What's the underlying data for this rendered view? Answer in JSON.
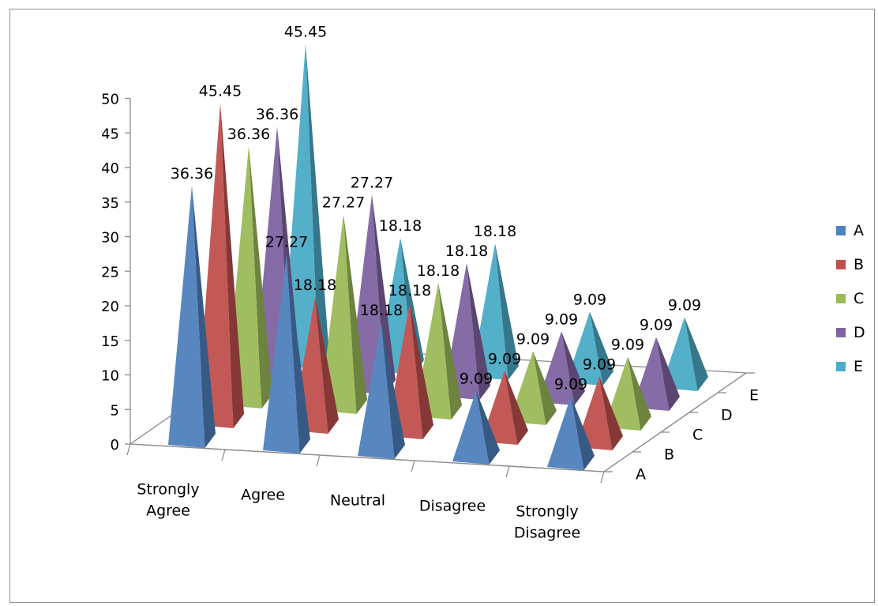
{
  "chart_data": {
    "type": "bar",
    "shape": "3d-pyramid",
    "categories": [
      "Strongly Agree",
      "Agree",
      "Neutral",
      "Disagree",
      "Strongly Disagree"
    ],
    "category_lines": [
      [
        "Strongly",
        "Agree"
      ],
      [
        "Agree"
      ],
      [
        "Neutral"
      ],
      [
        "Disagree"
      ],
      [
        "Strongly",
        "Disagree"
      ]
    ],
    "series": [
      {
        "name": "A",
        "color": "#4f81bd",
        "values": [
          36.36,
          27.27,
          18.18,
          9.09,
          9.09
        ]
      },
      {
        "name": "B",
        "color": "#c0504d",
        "values": [
          45.45,
          18.18,
          18.18,
          9.09,
          9.09
        ]
      },
      {
        "name": "C",
        "color": "#9bbb59",
        "values": [
          36.36,
          27.27,
          18.18,
          9.09,
          9.09
        ]
      },
      {
        "name": "D",
        "color": "#8064a2",
        "values": [
          36.36,
          27.27,
          18.18,
          9.09,
          9.09
        ]
      },
      {
        "name": "E",
        "color": "#4bacc6",
        "values": [
          45.45,
          18.18,
          18.18,
          9.09,
          9.09
        ]
      }
    ],
    "y_ticks": [
      "0",
      "5",
      "10",
      "15",
      "20",
      "25",
      "30",
      "35",
      "40",
      "45",
      "50"
    ],
    "ylim": [
      0,
      50
    ],
    "depth_labels": [
      "A",
      "B",
      "C",
      "D",
      "E"
    ],
    "data_labels": [
      {
        "series": 0,
        "category": 0,
        "text": "36.36"
      },
      {
        "series": 0,
        "category": 1,
        "text": "27.27"
      },
      {
        "series": 0,
        "category": 2,
        "text": "18.18"
      },
      {
        "series": 0,
        "category": 3,
        "text": "9.09"
      },
      {
        "series": 0,
        "category": 4,
        "text": "9.09"
      },
      {
        "series": 1,
        "category": 0,
        "text": "45.45"
      },
      {
        "series": 1,
        "category": 1,
        "text": "18.18"
      },
      {
        "series": 1,
        "category": 2,
        "text": "18.18"
      },
      {
        "series": 1,
        "category": 3,
        "text": "9.09"
      },
      {
        "series": 1,
        "category": 4,
        "text": "9.09"
      },
      {
        "series": 2,
        "category": 0,
        "text": "36.36"
      },
      {
        "series": 2,
        "category": 1,
        "text": "27.27"
      },
      {
        "series": 2,
        "category": 2,
        "text": "18.18"
      },
      {
        "series": 2,
        "category": 3,
        "text": "9.09"
      },
      {
        "series": 2,
        "category": 4,
        "text": "9.09"
      },
      {
        "series": 3,
        "category": 0,
        "text": "36.36"
      },
      {
        "series": 3,
        "category": 1,
        "text": "27.27"
      },
      {
        "series": 3,
        "category": 2,
        "text": "18.18"
      },
      {
        "series": 3,
        "category": 3,
        "text": "9.09"
      },
      {
        "series": 3,
        "category": 4,
        "text": "9.09"
      },
      {
        "series": 4,
        "category": 0,
        "text": "45.45"
      },
      {
        "series": 4,
        "category": 1,
        "text": "18.18"
      },
      {
        "series": 4,
        "category": 2,
        "text": "18.18"
      },
      {
        "series": 4,
        "category": 3,
        "text": "9.09"
      },
      {
        "series": 4,
        "category": 4,
        "text": "9.09"
      }
    ],
    "legend": {
      "position": "right",
      "entries": [
        "A",
        "B",
        "C",
        "D",
        "E"
      ]
    },
    "gridlines": false
  }
}
